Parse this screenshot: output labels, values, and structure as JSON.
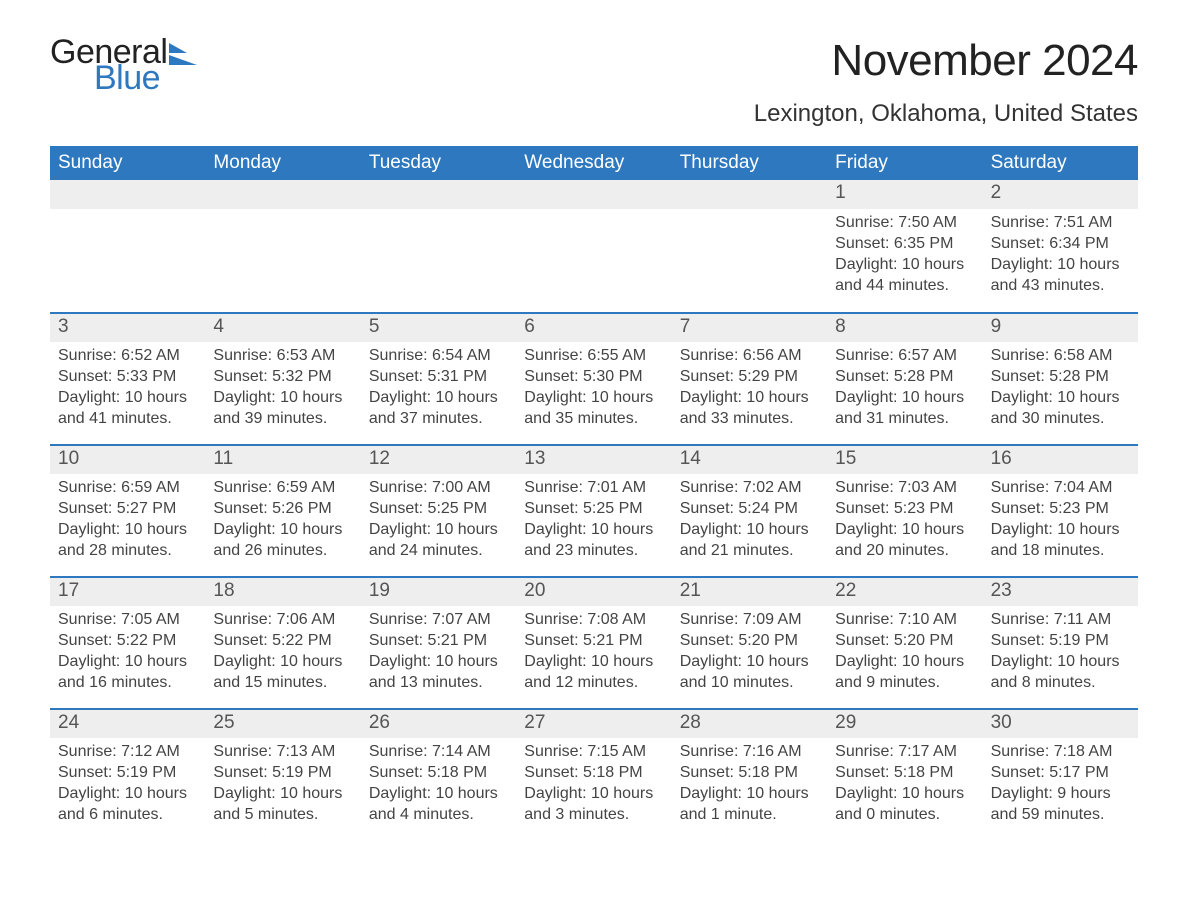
{
  "brand": {
    "word1": "General",
    "word2": "Blue",
    "sail_color": "#2e78bf"
  },
  "title": "November 2024",
  "location": "Lexington, Oklahoma, United States",
  "colors": {
    "header_blue": "#2e78bf",
    "row_stripe": "#eeeeee",
    "rule_blue": "#2e78bf",
    "text": "#444444",
    "background": "#ffffff"
  },
  "weekdays": [
    "Sunday",
    "Monday",
    "Tuesday",
    "Wednesday",
    "Thursday",
    "Friday",
    "Saturday"
  ],
  "weeks": [
    [
      {
        "n": "",
        "sunrise": "",
        "sunset": "",
        "daylight": ""
      },
      {
        "n": "",
        "sunrise": "",
        "sunset": "",
        "daylight": ""
      },
      {
        "n": "",
        "sunrise": "",
        "sunset": "",
        "daylight": ""
      },
      {
        "n": "",
        "sunrise": "",
        "sunset": "",
        "daylight": ""
      },
      {
        "n": "",
        "sunrise": "",
        "sunset": "",
        "daylight": ""
      },
      {
        "n": "1",
        "sunrise": "Sunrise: 7:50 AM",
        "sunset": "Sunset: 6:35 PM",
        "daylight": "Daylight: 10 hours and 44 minutes."
      },
      {
        "n": "2",
        "sunrise": "Sunrise: 7:51 AM",
        "sunset": "Sunset: 6:34 PM",
        "daylight": "Daylight: 10 hours and 43 minutes."
      }
    ],
    [
      {
        "n": "3",
        "sunrise": "Sunrise: 6:52 AM",
        "sunset": "Sunset: 5:33 PM",
        "daylight": "Daylight: 10 hours and 41 minutes."
      },
      {
        "n": "4",
        "sunrise": "Sunrise: 6:53 AM",
        "sunset": "Sunset: 5:32 PM",
        "daylight": "Daylight: 10 hours and 39 minutes."
      },
      {
        "n": "5",
        "sunrise": "Sunrise: 6:54 AM",
        "sunset": "Sunset: 5:31 PM",
        "daylight": "Daylight: 10 hours and 37 minutes."
      },
      {
        "n": "6",
        "sunrise": "Sunrise: 6:55 AM",
        "sunset": "Sunset: 5:30 PM",
        "daylight": "Daylight: 10 hours and 35 minutes."
      },
      {
        "n": "7",
        "sunrise": "Sunrise: 6:56 AM",
        "sunset": "Sunset: 5:29 PM",
        "daylight": "Daylight: 10 hours and 33 minutes."
      },
      {
        "n": "8",
        "sunrise": "Sunrise: 6:57 AM",
        "sunset": "Sunset: 5:28 PM",
        "daylight": "Daylight: 10 hours and 31 minutes."
      },
      {
        "n": "9",
        "sunrise": "Sunrise: 6:58 AM",
        "sunset": "Sunset: 5:28 PM",
        "daylight": "Daylight: 10 hours and 30 minutes."
      }
    ],
    [
      {
        "n": "10",
        "sunrise": "Sunrise: 6:59 AM",
        "sunset": "Sunset: 5:27 PM",
        "daylight": "Daylight: 10 hours and 28 minutes."
      },
      {
        "n": "11",
        "sunrise": "Sunrise: 6:59 AM",
        "sunset": "Sunset: 5:26 PM",
        "daylight": "Daylight: 10 hours and 26 minutes."
      },
      {
        "n": "12",
        "sunrise": "Sunrise: 7:00 AM",
        "sunset": "Sunset: 5:25 PM",
        "daylight": "Daylight: 10 hours and 24 minutes."
      },
      {
        "n": "13",
        "sunrise": "Sunrise: 7:01 AM",
        "sunset": "Sunset: 5:25 PM",
        "daylight": "Daylight: 10 hours and 23 minutes."
      },
      {
        "n": "14",
        "sunrise": "Sunrise: 7:02 AM",
        "sunset": "Sunset: 5:24 PM",
        "daylight": "Daylight: 10 hours and 21 minutes."
      },
      {
        "n": "15",
        "sunrise": "Sunrise: 7:03 AM",
        "sunset": "Sunset: 5:23 PM",
        "daylight": "Daylight: 10 hours and 20 minutes."
      },
      {
        "n": "16",
        "sunrise": "Sunrise: 7:04 AM",
        "sunset": "Sunset: 5:23 PM",
        "daylight": "Daylight: 10 hours and 18 minutes."
      }
    ],
    [
      {
        "n": "17",
        "sunrise": "Sunrise: 7:05 AM",
        "sunset": "Sunset: 5:22 PM",
        "daylight": "Daylight: 10 hours and 16 minutes."
      },
      {
        "n": "18",
        "sunrise": "Sunrise: 7:06 AM",
        "sunset": "Sunset: 5:22 PM",
        "daylight": "Daylight: 10 hours and 15 minutes."
      },
      {
        "n": "19",
        "sunrise": "Sunrise: 7:07 AM",
        "sunset": "Sunset: 5:21 PM",
        "daylight": "Daylight: 10 hours and 13 minutes."
      },
      {
        "n": "20",
        "sunrise": "Sunrise: 7:08 AM",
        "sunset": "Sunset: 5:21 PM",
        "daylight": "Daylight: 10 hours and 12 minutes."
      },
      {
        "n": "21",
        "sunrise": "Sunrise: 7:09 AM",
        "sunset": "Sunset: 5:20 PM",
        "daylight": "Daylight: 10 hours and 10 minutes."
      },
      {
        "n": "22",
        "sunrise": "Sunrise: 7:10 AM",
        "sunset": "Sunset: 5:20 PM",
        "daylight": "Daylight: 10 hours and 9 minutes."
      },
      {
        "n": "23",
        "sunrise": "Sunrise: 7:11 AM",
        "sunset": "Sunset: 5:19 PM",
        "daylight": "Daylight: 10 hours and 8 minutes."
      }
    ],
    [
      {
        "n": "24",
        "sunrise": "Sunrise: 7:12 AM",
        "sunset": "Sunset: 5:19 PM",
        "daylight": "Daylight: 10 hours and 6 minutes."
      },
      {
        "n": "25",
        "sunrise": "Sunrise: 7:13 AM",
        "sunset": "Sunset: 5:19 PM",
        "daylight": "Daylight: 10 hours and 5 minutes."
      },
      {
        "n": "26",
        "sunrise": "Sunrise: 7:14 AM",
        "sunset": "Sunset: 5:18 PM",
        "daylight": "Daylight: 10 hours and 4 minutes."
      },
      {
        "n": "27",
        "sunrise": "Sunrise: 7:15 AM",
        "sunset": "Sunset: 5:18 PM",
        "daylight": "Daylight: 10 hours and 3 minutes."
      },
      {
        "n": "28",
        "sunrise": "Sunrise: 7:16 AM",
        "sunset": "Sunset: 5:18 PM",
        "daylight": "Daylight: 10 hours and 1 minute."
      },
      {
        "n": "29",
        "sunrise": "Sunrise: 7:17 AM",
        "sunset": "Sunset: 5:18 PM",
        "daylight": "Daylight: 10 hours and 0 minutes."
      },
      {
        "n": "30",
        "sunrise": "Sunrise: 7:18 AM",
        "sunset": "Sunset: 5:17 PM",
        "daylight": "Daylight: 9 hours and 59 minutes."
      }
    ]
  ]
}
